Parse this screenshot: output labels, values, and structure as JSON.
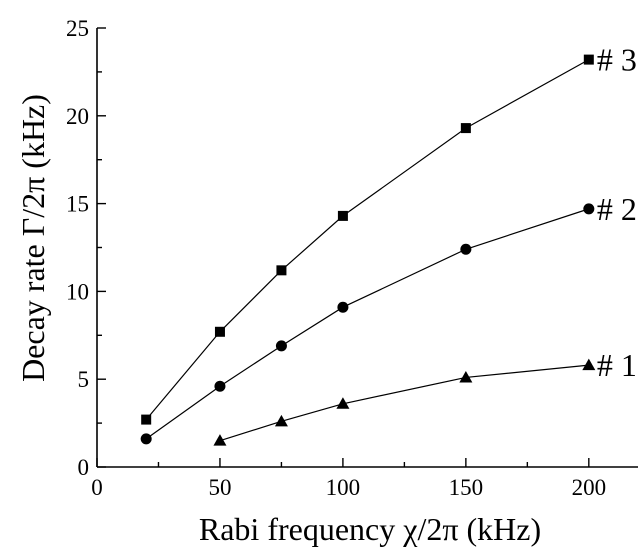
{
  "chart_data": {
    "type": "line",
    "title": "",
    "xlabel": "Rabi frequency χ/2π (kHz)",
    "ylabel": "Decay rate Γ/2π (kHz)",
    "xlim": [
      0,
      220
    ],
    "ylim": [
      0,
      25
    ],
    "xticks": [
      0,
      50,
      100,
      150,
      200
    ],
    "yticks": [
      0,
      5,
      10,
      15,
      20,
      25
    ],
    "xtick_labels": [
      "0",
      "50",
      "100",
      "150",
      "200"
    ],
    "ytick_labels": [
      "0",
      "5",
      "10",
      "15",
      "20",
      "25"
    ],
    "grid": false,
    "series": [
      {
        "name": "# 3",
        "marker": "square",
        "x": [
          20,
          50,
          75,
          100,
          150,
          200
        ],
        "y": [
          2.7,
          7.7,
          11.2,
          14.3,
          19.3,
          23.2
        ]
      },
      {
        "name": "# 2",
        "marker": "circle",
        "x": [
          20,
          50,
          75,
          100,
          150,
          200
        ],
        "y": [
          1.6,
          4.6,
          6.9,
          9.1,
          12.4,
          14.7
        ]
      },
      {
        "name": "# 1",
        "marker": "triangle",
        "x": [
          50,
          75,
          100,
          150,
          200
        ],
        "y": [
          1.5,
          2.6,
          3.6,
          5.1,
          5.8
        ]
      }
    ]
  }
}
